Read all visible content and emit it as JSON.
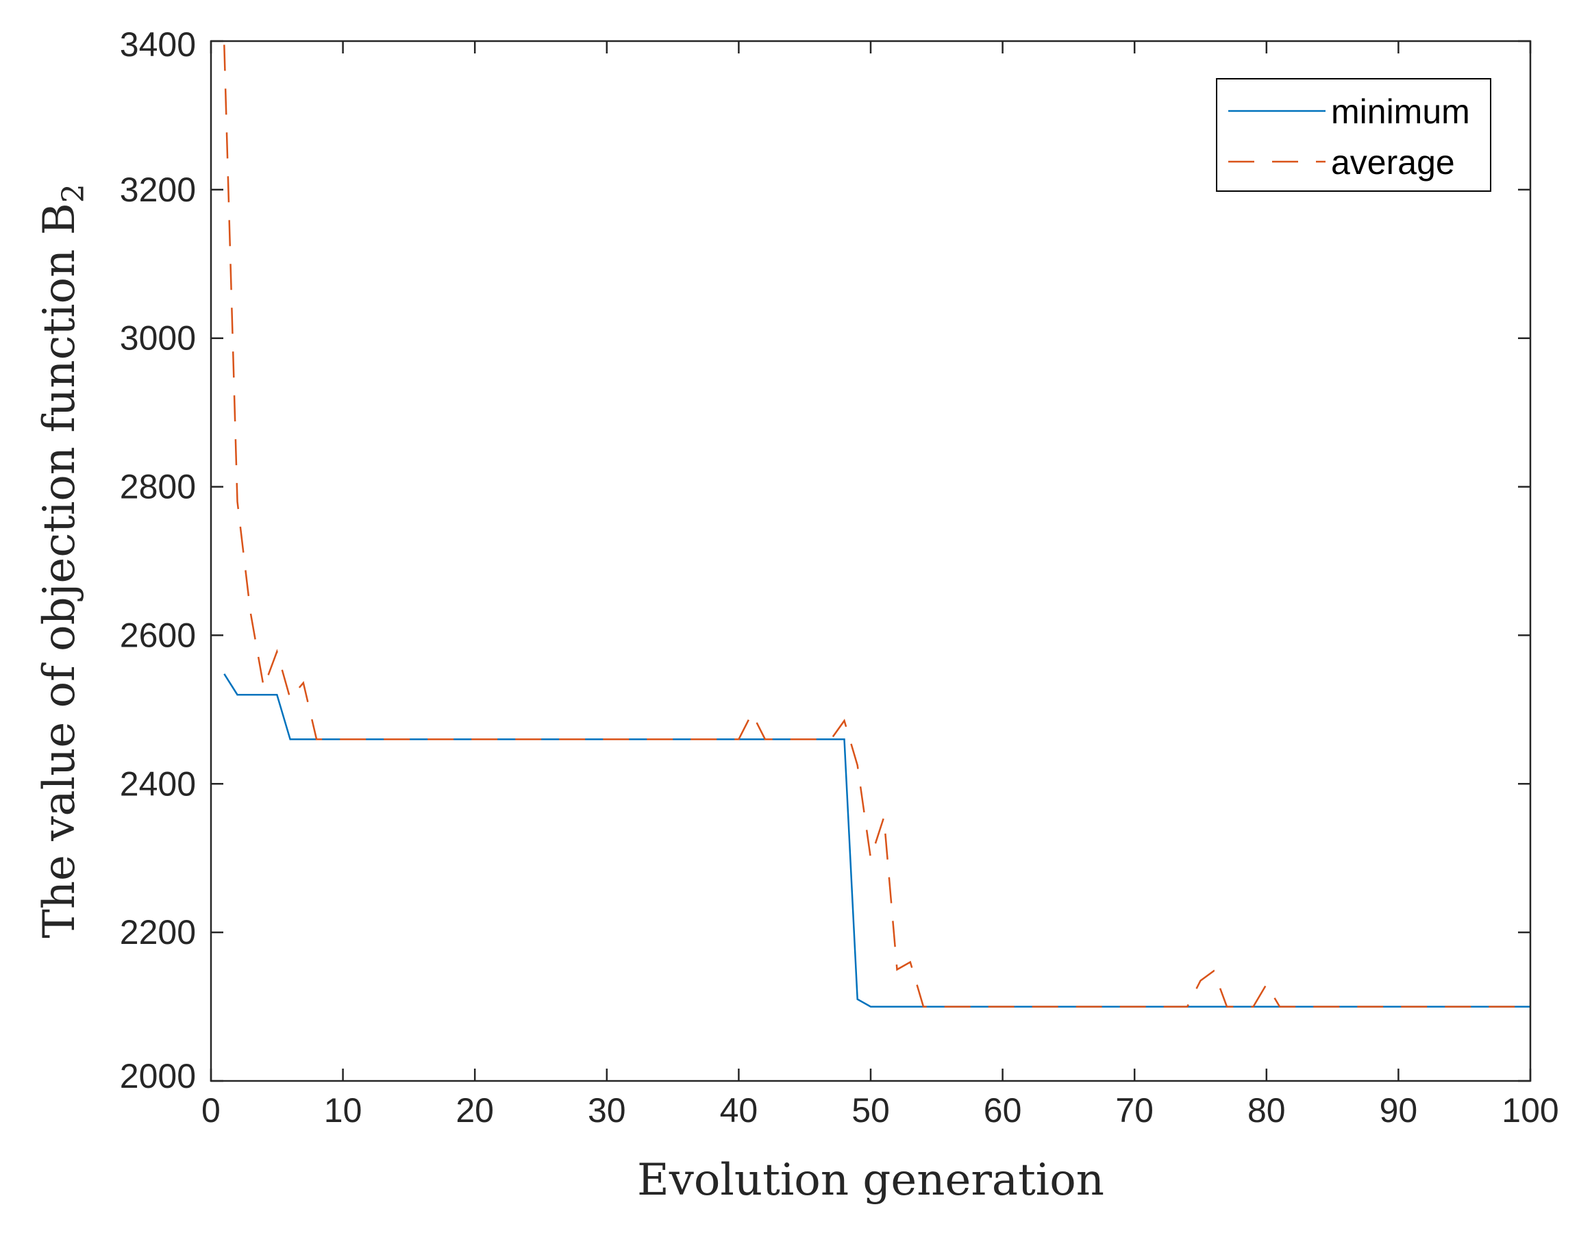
{
  "chart_data": {
    "type": "line",
    "xlabel": "Evolution generation",
    "ylabel": "The value of objection function B",
    "ylabel_subscript": "2",
    "xlim": [
      0,
      100
    ],
    "ylim": [
      2000,
      3400
    ],
    "xticks": [
      0,
      10,
      20,
      30,
      40,
      50,
      60,
      70,
      80,
      90,
      100
    ],
    "yticks": [
      2000,
      2200,
      2400,
      2600,
      2800,
      3000,
      3200,
      3400
    ],
    "grid": false,
    "legend_position": "top-right",
    "series": [
      {
        "name": "minimum",
        "color": "#0072BD",
        "style": "solid",
        "x": [
          1,
          2,
          3,
          4,
          5,
          6,
          7,
          8,
          10,
          20,
          30,
          40,
          45,
          48,
          49,
          50,
          55,
          60,
          70,
          80,
          90,
          100
        ],
        "y": [
          2548,
          2520,
          2520,
          2520,
          2520,
          2460,
          2460,
          2460,
          2460,
          2460,
          2460,
          2460,
          2460,
          2460,
          2110,
          2100,
          2100,
          2100,
          2100,
          2100,
          2100,
          2100
        ]
      },
      {
        "name": "average",
        "color": "#D95319",
        "style": "dashed",
        "x": [
          1,
          2,
          3,
          4,
          5,
          6,
          7,
          8,
          10,
          20,
          30,
          40,
          41,
          42,
          45,
          47,
          48,
          49,
          50,
          51,
          52,
          53,
          54,
          60,
          70,
          74,
          75,
          76,
          77,
          78,
          79,
          80,
          81,
          90,
          100
        ],
        "y": [
          3395,
          2780,
          2630,
          2530,
          2578,
          2515,
          2536,
          2460,
          2460,
          2460,
          2460,
          2460,
          2495,
          2460,
          2460,
          2460,
          2485,
          2425,
          2300,
          2355,
          2150,
          2160,
          2100,
          2100,
          2100,
          2100,
          2135,
          2148,
          2100,
          2100,
          2100,
          2130,
          2100,
          2100,
          2100
        ]
      }
    ]
  }
}
